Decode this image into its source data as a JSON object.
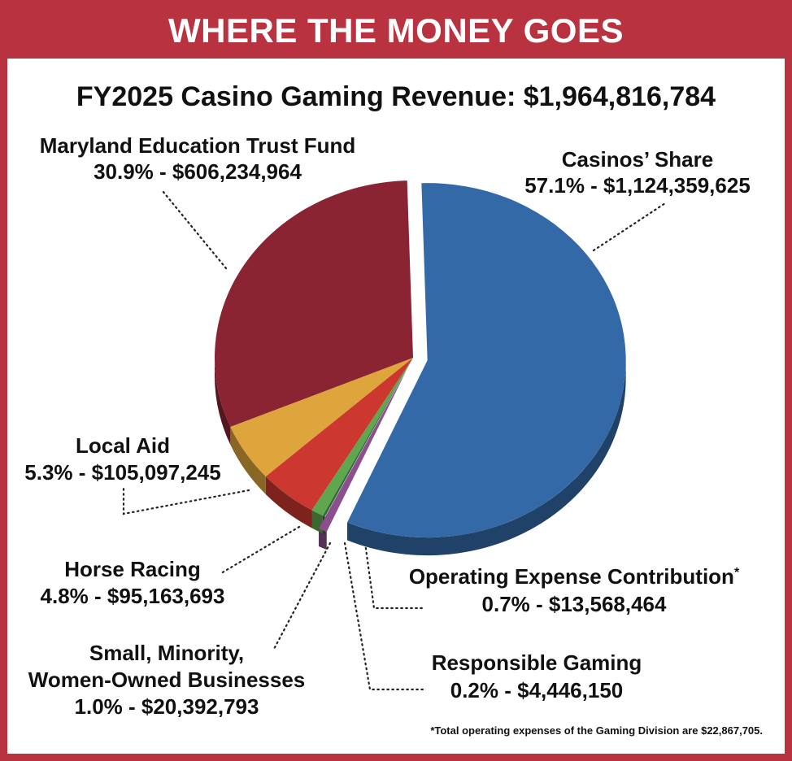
{
  "header": {
    "title": "WHERE THE MONEY GOES"
  },
  "colors": {
    "frame": "#b8333f",
    "casinos": "#3469a8",
    "education": "#8a2432",
    "local_aid": "#dea53c",
    "horse_racing": "#cc372f",
    "small_business": "#5fa64e",
    "responsible_gaming": "#2e6e34",
    "operating_expense": "#8c4e8e"
  },
  "chart_data": {
    "type": "pie",
    "title": "FY2025 Casino Gaming Revenue: $1,964,816,784",
    "slices": [
      {
        "key": "casinos",
        "label": "Casinos’ Share",
        "percent": 57.1,
        "amount": "$1,124,359,625",
        "value_label": "57.1% - $1,124,359,625"
      },
      {
        "key": "operating_expense",
        "label": "Operating Expense Contribution",
        "marker": "*",
        "percent": 0.7,
        "amount": "$13,568,464",
        "value_label": "0.7% - $13,568,464"
      },
      {
        "key": "responsible_gaming",
        "label": "Responsible Gaming",
        "percent": 0.2,
        "amount": "$4,446,150",
        "value_label": "0.2% - $4,446,150"
      },
      {
        "key": "small_business",
        "label": "Small, Minority, Women-Owned Businesses",
        "label_lines": [
          "Small, Minority,",
          "Women-Owned Businesses"
        ],
        "percent": 1.0,
        "amount": "$20,392,793",
        "value_label": "1.0% - $20,392,793"
      },
      {
        "key": "horse_racing",
        "label": "Horse Racing",
        "percent": 4.8,
        "amount": "$95,163,693",
        "value_label": "4.8% - $95,163,693"
      },
      {
        "key": "local_aid",
        "label": "Local Aid",
        "percent": 5.3,
        "amount": "$105,097,245",
        "value_label": "5.3% - $105,097,245"
      },
      {
        "key": "education",
        "label": "Maryland Education Trust Fund",
        "percent": 30.9,
        "amount": "$606,234,964",
        "value_label": "30.9% - $606,234,964"
      }
    ],
    "exploded": [
      "casinos",
      "operating_expense"
    ],
    "footnote": "*Total operating expenses of the Gaming Division are $22,867,705."
  }
}
